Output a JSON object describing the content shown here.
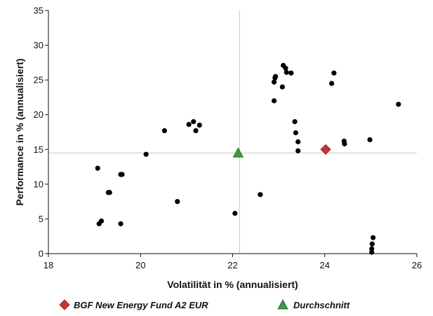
{
  "chart_data": {
    "type": "scatter",
    "xlabel": "Volatilität in % (annualisiert)",
    "ylabel": "Performance in % (annualisiert)",
    "xlim": [
      18,
      26
    ],
    "ylim": [
      0,
      35
    ],
    "xticks": [
      18,
      20,
      22,
      24,
      26
    ],
    "yticks": [
      0,
      5,
      10,
      15,
      20,
      25,
      30,
      35
    ],
    "crosshair": {
      "x": 22.15,
      "y": 14.5
    },
    "grid": false,
    "legend_position": "bottom",
    "series": [
      {
        "marker": "circle",
        "color": "#000000",
        "points": [
          [
            19.07,
            12.3
          ],
          [
            19.15,
            4.7
          ],
          [
            19.1,
            4.3
          ],
          [
            19.3,
            8.8
          ],
          [
            19.33,
            8.8
          ],
          [
            19.57,
            11.4
          ],
          [
            19.6,
            11.4
          ],
          [
            19.57,
            4.3
          ],
          [
            20.12,
            14.3
          ],
          [
            20.52,
            17.7
          ],
          [
            20.8,
            7.5
          ],
          [
            21.05,
            18.6
          ],
          [
            21.15,
            19.0
          ],
          [
            21.2,
            17.7
          ],
          [
            21.28,
            18.5
          ],
          [
            22.05,
            5.8
          ],
          [
            22.6,
            8.5
          ],
          [
            22.9,
            22.0
          ],
          [
            22.9,
            24.7
          ],
          [
            22.92,
            25.3
          ],
          [
            22.93,
            25.5
          ],
          [
            23.08,
            24.0
          ],
          [
            23.1,
            27.1
          ],
          [
            23.15,
            26.7
          ],
          [
            23.17,
            26.1
          ],
          [
            23.27,
            26.0
          ],
          [
            23.35,
            19.0
          ],
          [
            23.37,
            17.4
          ],
          [
            23.42,
            16.1
          ],
          [
            23.42,
            14.8
          ],
          [
            24.15,
            24.5
          ],
          [
            24.2,
            26.0
          ],
          [
            24.42,
            16.2
          ],
          [
            24.43,
            15.8
          ],
          [
            24.98,
            16.4
          ],
          [
            25.05,
            2.3
          ],
          [
            25.03,
            1.4
          ],
          [
            25.02,
            0.7
          ],
          [
            25.02,
            0.2
          ],
          [
            25.6,
            21.5
          ]
        ]
      },
      {
        "name": "BGF New Energy Fund A2 EUR",
        "marker": "diamond",
        "color": "#cc3333",
        "points": [
          [
            24.02,
            15.0
          ]
        ]
      },
      {
        "name": "Durchschnitt",
        "marker": "triangle",
        "color": "#3f9b3f",
        "points": [
          [
            22.12,
            14.5
          ]
        ]
      }
    ]
  },
  "legend": {
    "items": [
      {
        "label": "BGF New Energy Fund A2 EUR",
        "icon": "diamond-icon",
        "color": "#cc3333"
      },
      {
        "label": "Durchschnitt",
        "icon": "triangle-icon",
        "color": "#3f9b3f"
      }
    ]
  }
}
